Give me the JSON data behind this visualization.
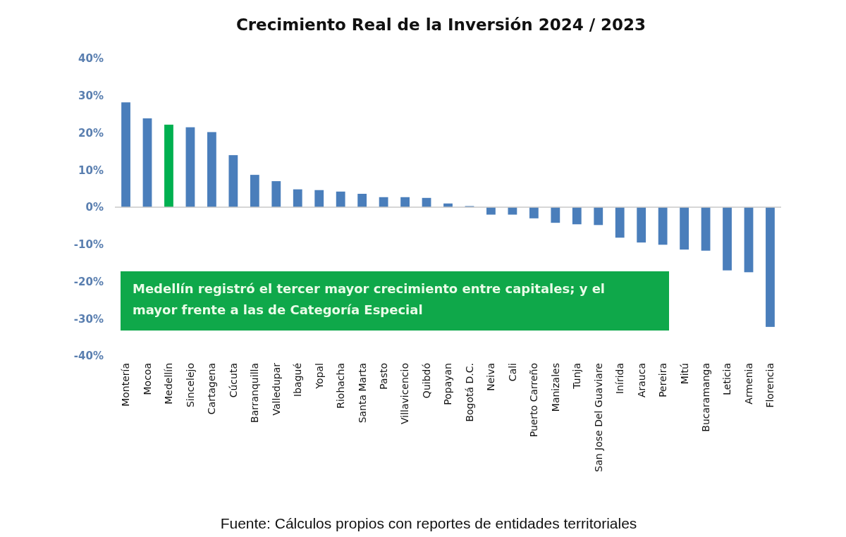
{
  "chart_data": {
    "type": "bar",
    "title": "Crecimiento Real de la Inversión 2024 / 2023",
    "categories": [
      "Montería",
      "Mocoa",
      "Medellín",
      "Sincelejo",
      "Cartagena",
      "Cúcuta",
      "Barranquilla",
      "Valledupar",
      "Ibagué",
      "Yopal",
      "Riohacha",
      "Santa Marta",
      "Pasto",
      "Villavicencio",
      "Quibdó",
      "Popayan",
      "Bogotá D.C.",
      "Neiva",
      "Cali",
      "Puerto Carreño",
      "Manizales",
      "Tunja",
      "San Jose Del Guaviare",
      "Inírida",
      "Arauca",
      "Pereira",
      "Mitú",
      "Bucaramanga",
      "Leticia",
      "Armenia",
      "Florencia"
    ],
    "values": [
      28.2,
      23.9,
      22.2,
      21.5,
      20.2,
      14.0,
      8.7,
      7.0,
      4.8,
      4.6,
      4.2,
      3.6,
      2.7,
      2.7,
      2.5,
      1.0,
      0.3,
      -2.0,
      -2.0,
      -3.0,
      -4.2,
      -4.6,
      -4.8,
      -8.2,
      -9.5,
      -10.1,
      -11.4,
      -11.7,
      -17.0,
      -17.5,
      -32.2
    ],
    "colors": [
      "#4a7ebb",
      "#4a7ebb",
      "#00b050",
      "#4a7ebb",
      "#4a7ebb",
      "#4a7ebb",
      "#4a7ebb",
      "#4a7ebb",
      "#4a7ebb",
      "#4a7ebb",
      "#4a7ebb",
      "#4a7ebb",
      "#4a7ebb",
      "#4a7ebb",
      "#4a7ebb",
      "#4a7ebb",
      "#4a7ebb",
      "#4a7ebb",
      "#4a7ebb",
      "#4a7ebb",
      "#4a7ebb",
      "#4a7ebb",
      "#4a7ebb",
      "#4a7ebb",
      "#4a7ebb",
      "#4a7ebb",
      "#4a7ebb",
      "#4a7ebb",
      "#4a7ebb",
      "#4a7ebb",
      "#4a7ebb"
    ],
    "ylim": [
      -40,
      40
    ],
    "yticks": [
      {
        "value": -40,
        "label": "-40%"
      },
      {
        "value": -30,
        "label": "-30%"
      },
      {
        "value": -20,
        "label": "-20%"
      },
      {
        "value": -10,
        "label": "-10%"
      },
      {
        "value": 0,
        "label": "0%"
      },
      {
        "value": 10,
        "label": "10%"
      },
      {
        "value": 20,
        "label": "20%"
      },
      {
        "value": 30,
        "label": "30%"
      },
      {
        "value": 40,
        "label": "40%"
      }
    ],
    "annotations": [
      "Medellín registró el tercer mayor crecimiento entre capitales; y el mayor frente a las de Categoría Especial",
      "Fuente: Cálculos propios con reportes de entidades territoriales"
    ]
  }
}
